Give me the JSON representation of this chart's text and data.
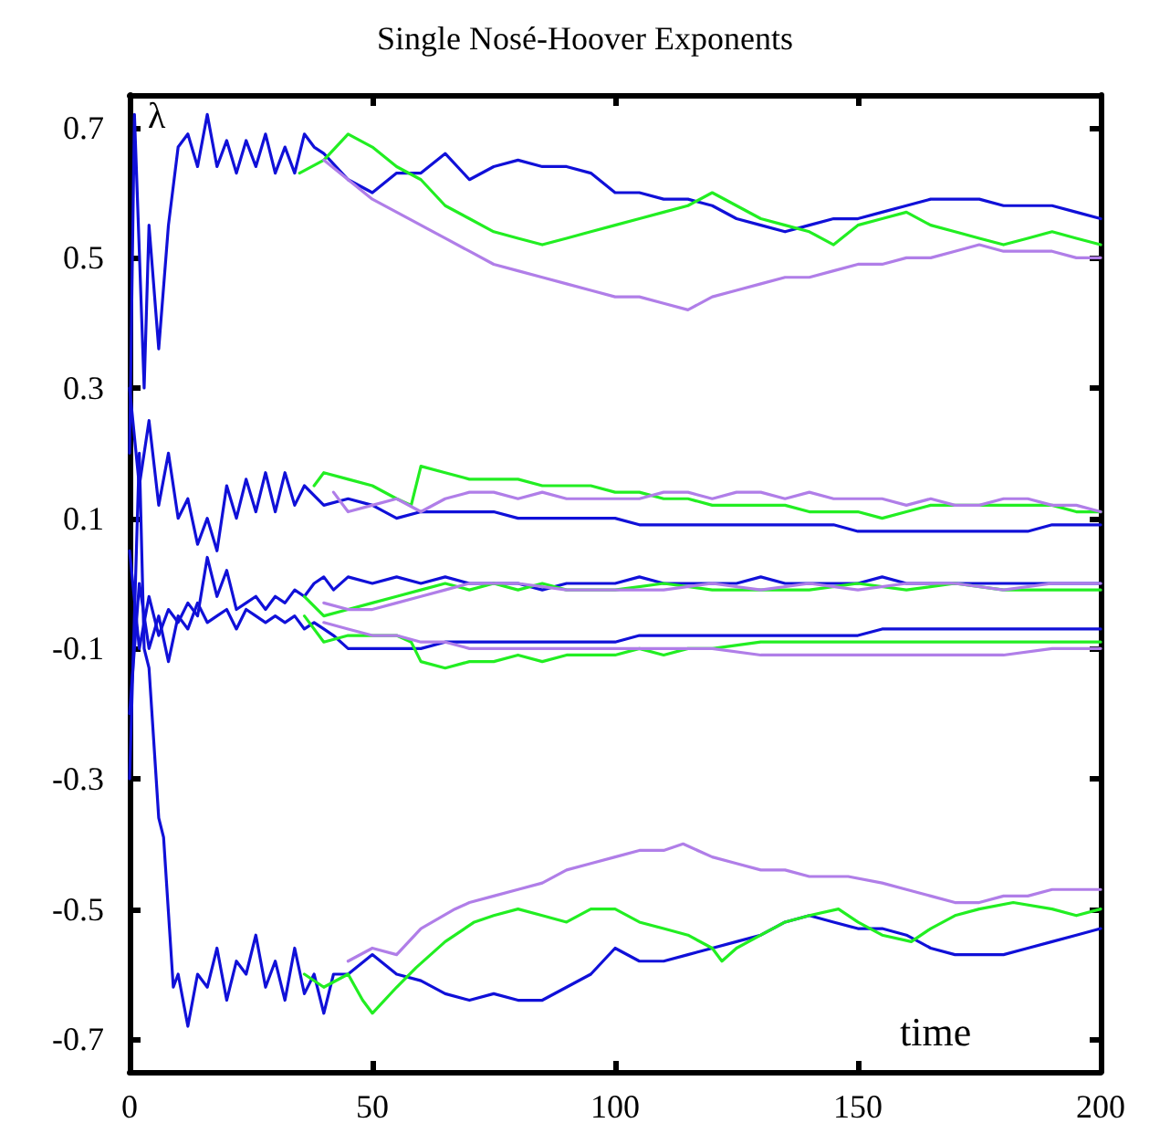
{
  "chart_data": {
    "type": "line",
    "title": "Single Nosé-Hoover Exponents",
    "xlabel": "time",
    "ylabel": "λ",
    "xlim": [
      0,
      200
    ],
    "xticks": [
      0,
      50,
      100,
      150,
      200
    ],
    "ylim": [
      -0.75,
      0.75
    ],
    "yticks": [
      -0.7,
      -0.5,
      -0.3,
      -0.1,
      0.1,
      0.3,
      0.5,
      0.7
    ],
    "grid": false,
    "marker": "none",
    "line_style": "solid",
    "series": [
      {
        "color": "#1010d8",
        "x": [
          0,
          1,
          3,
          4,
          6,
          8,
          10,
          12,
          14,
          16,
          18,
          20,
          22,
          24,
          26,
          28,
          30,
          32,
          34,
          36,
          38,
          40,
          45,
          50,
          55,
          60,
          65,
          70,
          75,
          80,
          85,
          90,
          95,
          100,
          105,
          110,
          115,
          120,
          125,
          130,
          135,
          140,
          145,
          150,
          155,
          160,
          165,
          170,
          175,
          180,
          185,
          190,
          195,
          200
        ],
        "values": [
          0.2,
          0.72,
          0.3,
          0.55,
          0.36,
          0.55,
          0.67,
          0.69,
          0.64,
          0.72,
          0.64,
          0.68,
          0.63,
          0.68,
          0.64,
          0.69,
          0.63,
          0.67,
          0.63,
          0.69,
          0.67,
          0.66,
          0.62,
          0.6,
          0.63,
          0.63,
          0.66,
          0.62,
          0.64,
          0.65,
          0.64,
          0.64,
          0.63,
          0.6,
          0.6,
          0.59,
          0.59,
          0.58,
          0.56,
          0.55,
          0.54,
          0.55,
          0.56,
          0.56,
          0.57,
          0.58,
          0.59,
          0.59,
          0.59,
          0.58,
          0.58,
          0.58,
          0.57,
          0.56
        ]
      },
      {
        "color": "#22ee22",
        "x": [
          35,
          40,
          45,
          50,
          55,
          60,
          65,
          70,
          75,
          80,
          85,
          90,
          95,
          100,
          105,
          110,
          115,
          120,
          125,
          130,
          135,
          140,
          145,
          150,
          155,
          160,
          165,
          170,
          175,
          180,
          185,
          190,
          195,
          200
        ],
        "values": [
          0.63,
          0.65,
          0.69,
          0.67,
          0.64,
          0.62,
          0.58,
          0.56,
          0.54,
          0.53,
          0.52,
          0.53,
          0.54,
          0.55,
          0.56,
          0.57,
          0.58,
          0.6,
          0.58,
          0.56,
          0.55,
          0.54,
          0.52,
          0.55,
          0.56,
          0.57,
          0.55,
          0.54,
          0.53,
          0.52,
          0.53,
          0.54,
          0.53,
          0.52
        ]
      },
      {
        "color": "#b07ee8",
        "x": [
          40,
          45,
          50,
          55,
          60,
          65,
          70,
          75,
          80,
          85,
          90,
          95,
          100,
          105,
          110,
          115,
          120,
          125,
          130,
          135,
          140,
          145,
          150,
          155,
          160,
          165,
          170,
          175,
          180,
          185,
          190,
          195,
          200
        ],
        "values": [
          0.65,
          0.62,
          0.59,
          0.57,
          0.55,
          0.53,
          0.51,
          0.49,
          0.48,
          0.47,
          0.46,
          0.45,
          0.44,
          0.44,
          0.43,
          0.42,
          0.44,
          0.45,
          0.46,
          0.47,
          0.47,
          0.48,
          0.49,
          0.49,
          0.5,
          0.5,
          0.51,
          0.52,
          0.51,
          0.51,
          0.51,
          0.5,
          0.5
        ]
      },
      {
        "color": "#1010d8",
        "x": [
          0,
          2,
          4,
          6,
          8,
          10,
          12,
          14,
          16,
          18,
          20,
          22,
          24,
          26,
          28,
          30,
          32,
          34,
          36,
          40,
          45,
          50,
          55,
          60,
          65,
          70,
          75,
          80,
          85,
          90,
          95,
          100,
          105,
          110,
          115,
          120,
          125,
          130,
          135,
          140,
          145,
          150,
          155,
          160,
          165,
          170,
          175,
          180,
          185,
          190,
          195,
          200
        ],
        "values": [
          0.3,
          0.15,
          0.25,
          0.12,
          0.2,
          0.1,
          0.13,
          0.06,
          0.1,
          0.05,
          0.15,
          0.1,
          0.16,
          0.11,
          0.17,
          0.11,
          0.17,
          0.12,
          0.15,
          0.12,
          0.13,
          0.12,
          0.1,
          0.11,
          0.11,
          0.11,
          0.11,
          0.1,
          0.1,
          0.1,
          0.1,
          0.1,
          0.09,
          0.09,
          0.09,
          0.09,
          0.09,
          0.09,
          0.09,
          0.09,
          0.09,
          0.08,
          0.08,
          0.08,
          0.08,
          0.08,
          0.08,
          0.08,
          0.08,
          0.09,
          0.09,
          0.09
        ]
      },
      {
        "color": "#22ee22",
        "x": [
          38,
          40,
          45,
          50,
          55,
          58,
          60,
          65,
          70,
          75,
          80,
          85,
          90,
          95,
          100,
          105,
          110,
          115,
          120,
          125,
          130,
          135,
          140,
          145,
          150,
          155,
          160,
          165,
          170,
          175,
          180,
          185,
          190,
          195,
          200
        ],
        "values": [
          0.15,
          0.17,
          0.16,
          0.15,
          0.13,
          0.12,
          0.18,
          0.17,
          0.16,
          0.16,
          0.16,
          0.15,
          0.15,
          0.15,
          0.14,
          0.14,
          0.13,
          0.13,
          0.12,
          0.12,
          0.12,
          0.12,
          0.11,
          0.11,
          0.11,
          0.1,
          0.11,
          0.12,
          0.12,
          0.12,
          0.12,
          0.12,
          0.12,
          0.11,
          0.11
        ]
      },
      {
        "color": "#b07ee8",
        "x": [
          42,
          45,
          50,
          55,
          60,
          65,
          70,
          75,
          80,
          85,
          90,
          95,
          100,
          105,
          110,
          115,
          120,
          125,
          130,
          135,
          140,
          145,
          150,
          155,
          160,
          165,
          170,
          175,
          180,
          185,
          190,
          195,
          200
        ],
        "values": [
          0.14,
          0.11,
          0.12,
          0.13,
          0.11,
          0.13,
          0.14,
          0.14,
          0.13,
          0.14,
          0.13,
          0.13,
          0.13,
          0.13,
          0.14,
          0.14,
          0.13,
          0.14,
          0.14,
          0.13,
          0.14,
          0.13,
          0.13,
          0.13,
          0.12,
          0.13,
          0.12,
          0.12,
          0.13,
          0.13,
          0.12,
          0.12,
          0.11
        ]
      },
      {
        "color": "#1010d8",
        "x": [
          0,
          2,
          4,
          6,
          8,
          10,
          12,
          14,
          16,
          18,
          20,
          22,
          24,
          26,
          28,
          30,
          32,
          34,
          36,
          38,
          40,
          42,
          45,
          50,
          55,
          60,
          65,
          70,
          75,
          80,
          85,
          90,
          95,
          100,
          105,
          110,
          115,
          120,
          125,
          130,
          135,
          140,
          145,
          150,
          155,
          160,
          165,
          170,
          175,
          180,
          185,
          190,
          195,
          200
        ],
        "values": [
          0.05,
          -0.1,
          -0.02,
          -0.08,
          -0.04,
          -0.06,
          -0.03,
          -0.05,
          0.04,
          -0.02,
          0.02,
          -0.04,
          -0.03,
          -0.02,
          -0.04,
          -0.02,
          -0.03,
          -0.01,
          -0.02,
          0.0,
          0.01,
          -0.01,
          0.01,
          0.0,
          0.01,
          0.0,
          0.01,
          0.0,
          0.0,
          0.0,
          -0.01,
          0.0,
          0.0,
          0.0,
          0.01,
          0.0,
          0.0,
          0.0,
          0.0,
          0.01,
          0.0,
          0.0,
          0.0,
          0.0,
          0.01,
          0.0,
          0.0,
          0.0,
          0.0,
          0.0,
          0.0,
          0.0,
          0.0,
          0.0
        ]
      },
      {
        "color": "#22ee22",
        "x": [
          36,
          40,
          45,
          50,
          55,
          60,
          65,
          70,
          75,
          80,
          85,
          90,
          95,
          100,
          110,
          120,
          130,
          140,
          150,
          160,
          170,
          180,
          190,
          200
        ],
        "values": [
          -0.02,
          -0.05,
          -0.04,
          -0.03,
          -0.02,
          -0.01,
          0.0,
          -0.01,
          0.0,
          -0.01,
          0.0,
          -0.01,
          -0.01,
          -0.01,
          0.0,
          -0.01,
          -0.01,
          -0.01,
          0.0,
          -0.01,
          0.0,
          -0.01,
          -0.01,
          -0.01
        ]
      },
      {
        "color": "#b07ee8",
        "x": [
          40,
          45,
          50,
          55,
          60,
          65,
          70,
          75,
          80,
          90,
          100,
          110,
          120,
          130,
          140,
          150,
          160,
          170,
          180,
          190,
          200
        ],
        "values": [
          -0.03,
          -0.04,
          -0.04,
          -0.03,
          -0.02,
          -0.01,
          0.0,
          0.0,
          0.0,
          -0.01,
          -0.01,
          -0.01,
          0.0,
          -0.01,
          0.0,
          -0.01,
          0.0,
          0.0,
          -0.01,
          0.0,
          0.0
        ]
      },
      {
        "color": "#1010d8",
        "x": [
          0,
          2,
          4,
          6,
          8,
          10,
          12,
          14,
          16,
          18,
          20,
          22,
          24,
          26,
          28,
          30,
          32,
          34,
          36,
          38,
          40,
          42,
          45,
          50,
          55,
          60,
          65,
          70,
          75,
          80,
          85,
          90,
          95,
          100,
          105,
          110,
          115,
          120,
          125,
          130,
          135,
          140,
          145,
          150,
          155,
          160,
          165,
          170,
          175,
          180,
          185,
          190,
          195,
          200
        ],
        "values": [
          -0.2,
          0.0,
          -0.1,
          -0.05,
          -0.12,
          -0.05,
          -0.07,
          -0.03,
          -0.06,
          -0.05,
          -0.04,
          -0.07,
          -0.04,
          -0.05,
          -0.06,
          -0.05,
          -0.06,
          -0.05,
          -0.07,
          -0.06,
          -0.07,
          -0.08,
          -0.1,
          -0.1,
          -0.1,
          -0.1,
          -0.09,
          -0.09,
          -0.09,
          -0.09,
          -0.09,
          -0.09,
          -0.09,
          -0.09,
          -0.08,
          -0.08,
          -0.08,
          -0.08,
          -0.08,
          -0.08,
          -0.08,
          -0.08,
          -0.08,
          -0.08,
          -0.07,
          -0.07,
          -0.07,
          -0.07,
          -0.07,
          -0.07,
          -0.07,
          -0.07,
          -0.07,
          -0.07
        ]
      },
      {
        "color": "#22ee22",
        "x": [
          36,
          40,
          45,
          50,
          55,
          58,
          60,
          65,
          70,
          75,
          80,
          85,
          90,
          95,
          100,
          105,
          110,
          115,
          120,
          130,
          140,
          150,
          160,
          170,
          180,
          190,
          200
        ],
        "values": [
          -0.05,
          -0.09,
          -0.08,
          -0.08,
          -0.08,
          -0.09,
          -0.12,
          -0.13,
          -0.12,
          -0.12,
          -0.11,
          -0.12,
          -0.11,
          -0.11,
          -0.11,
          -0.1,
          -0.11,
          -0.1,
          -0.1,
          -0.09,
          -0.09,
          -0.09,
          -0.09,
          -0.09,
          -0.09,
          -0.09,
          -0.09
        ]
      },
      {
        "color": "#b07ee8",
        "x": [
          40,
          45,
          50,
          55,
          60,
          65,
          70,
          75,
          80,
          90,
          100,
          110,
          120,
          130,
          140,
          150,
          160,
          170,
          180,
          190,
          200
        ],
        "values": [
          -0.06,
          -0.07,
          -0.08,
          -0.08,
          -0.09,
          -0.09,
          -0.1,
          -0.1,
          -0.1,
          -0.1,
          -0.1,
          -0.1,
          -0.1,
          -0.11,
          -0.11,
          -0.11,
          -0.11,
          -0.11,
          -0.11,
          -0.1,
          -0.1
        ]
      },
      {
        "color": "#1010d8",
        "x": [
          0,
          2,
          3,
          4,
          6,
          7,
          9,
          10,
          12,
          14,
          16,
          18,
          20,
          22,
          24,
          26,
          28,
          30,
          32,
          34,
          36,
          38,
          40,
          42,
          45,
          50,
          55,
          60,
          65,
          70,
          75,
          80,
          85,
          90,
          95,
          100,
          105,
          110,
          115,
          120,
          125,
          130,
          135,
          140,
          145,
          150,
          155,
          160,
          165,
          170,
          175,
          180,
          185,
          190,
          195,
          200
        ],
        "values": [
          -0.3,
          0.2,
          -0.1,
          -0.13,
          -0.36,
          -0.39,
          -0.62,
          -0.6,
          -0.68,
          -0.6,
          -0.62,
          -0.56,
          -0.64,
          -0.58,
          -0.6,
          -0.54,
          -0.62,
          -0.58,
          -0.64,
          -0.56,
          -0.63,
          -0.6,
          -0.66,
          -0.6,
          -0.6,
          -0.57,
          -0.6,
          -0.61,
          -0.63,
          -0.64,
          -0.63,
          -0.64,
          -0.64,
          -0.62,
          -0.6,
          -0.56,
          -0.58,
          -0.58,
          -0.57,
          -0.56,
          -0.55,
          -0.54,
          -0.52,
          -0.51,
          -0.52,
          -0.53,
          -0.53,
          -0.54,
          -0.56,
          -0.57,
          -0.57,
          -0.57,
          -0.56,
          -0.55,
          -0.54,
          -0.53
        ]
      },
      {
        "color": "#22ee22",
        "x": [
          36,
          40,
          45,
          48,
          50,
          55,
          59,
          65,
          71,
          75,
          80,
          85,
          90,
          95,
          100,
          105,
          110,
          115,
          120,
          122,
          125,
          130,
          135,
          140,
          146,
          150,
          155,
          161,
          165,
          170,
          175,
          182,
          190,
          195,
          200
        ],
        "values": [
          -0.6,
          -0.62,
          -0.6,
          -0.64,
          -0.66,
          -0.62,
          -0.59,
          -0.55,
          -0.52,
          -0.51,
          -0.5,
          -0.51,
          -0.52,
          -0.5,
          -0.5,
          -0.52,
          -0.53,
          -0.54,
          -0.56,
          -0.58,
          -0.56,
          -0.54,
          -0.52,
          -0.51,
          -0.5,
          -0.52,
          -0.54,
          -0.55,
          -0.53,
          -0.51,
          -0.5,
          -0.49,
          -0.5,
          -0.51,
          -0.5
        ]
      },
      {
        "color": "#b07ee8",
        "x": [
          45,
          50,
          55,
          60,
          67,
          70,
          75,
          80,
          85,
          90,
          95,
          100,
          105,
          110,
          114,
          120,
          125,
          130,
          135,
          140,
          148,
          155,
          160,
          165,
          170,
          175,
          180,
          185,
          190,
          195,
          200
        ],
        "values": [
          -0.58,
          -0.56,
          -0.57,
          -0.53,
          -0.5,
          -0.49,
          -0.48,
          -0.47,
          -0.46,
          -0.44,
          -0.43,
          -0.42,
          -0.41,
          -0.41,
          -0.4,
          -0.42,
          -0.43,
          -0.44,
          -0.44,
          -0.45,
          -0.45,
          -0.46,
          -0.47,
          -0.48,
          -0.49,
          -0.49,
          -0.48,
          -0.48,
          -0.47,
          -0.47,
          -0.47
        ]
      }
    ]
  }
}
